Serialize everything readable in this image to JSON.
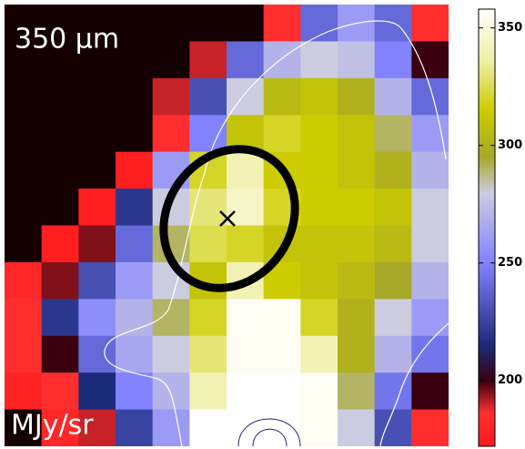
{
  "chart_data": {
    "type": "heatmap",
    "title": "350 μm",
    "unit_label": "MJy/sr",
    "zlim": [
      172,
      358
    ],
    "zticks": [
      200,
      250,
      300,
      350
    ],
    "below_color": "#140000",
    "colormap": [
      [
        172,
        "#ff1a1a"
      ],
      [
        186,
        "#ff3030"
      ],
      [
        200,
        "#3a0010"
      ],
      [
        215,
        "#1c2a7a"
      ],
      [
        250,
        "#8282ff"
      ],
      [
        280,
        "#cccce0"
      ],
      [
        295,
        "#a8a828"
      ],
      [
        315,
        "#cccc00"
      ],
      [
        335,
        "#eeeea0"
      ],
      [
        358,
        "#ffffff"
      ]
    ],
    "values": [
      [
        160,
        160,
        160,
        160,
        160,
        160,
        160,
        185,
        240,
        260,
        240,
        185
      ],
      [
        160,
        160,
        160,
        160,
        160,
        190,
        240,
        270,
        280,
        275,
        250,
        200
      ],
      [
        160,
        160,
        160,
        160,
        190,
        230,
        280,
        305,
        310,
        300,
        270,
        240
      ],
      [
        160,
        160,
        160,
        160,
        185,
        250,
        310,
        320,
        315,
        310,
        290,
        260
      ],
      [
        160,
        160,
        160,
        175,
        260,
        320,
        340,
        315,
        315,
        310,
        300,
        270
      ],
      [
        160,
        160,
        175,
        220,
        280,
        330,
        345,
        320,
        315,
        315,
        310,
        280
      ],
      [
        160,
        175,
        195,
        240,
        290,
        325,
        320,
        310,
        310,
        310,
        305,
        280
      ],
      [
        180,
        195,
        230,
        260,
        280,
        310,
        340,
        315,
        310,
        305,
        295,
        270
      ],
      [
        185,
        220,
        255,
        270,
        290,
        320,
        355,
        355,
        320,
        300,
        280,
        260
      ],
      [
        185,
        200,
        240,
        265,
        280,
        330,
        355,
        355,
        340,
        300,
        270,
        245
      ],
      [
        178,
        185,
        215,
        250,
        270,
        340,
        358,
        358,
        355,
        290,
        245,
        200
      ],
      [
        160,
        180,
        190,
        225,
        260,
        358,
        358,
        358,
        355,
        280,
        230,
        185
      ]
    ]
  }
}
